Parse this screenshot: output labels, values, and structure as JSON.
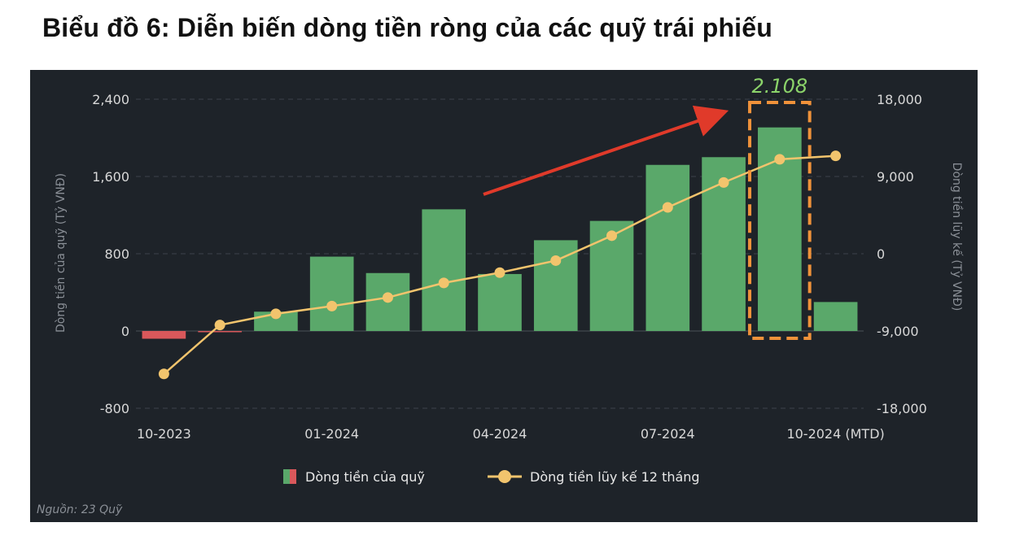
{
  "title": "Biểu đồ 6: Diễn biến dòng tiền ròng của các quỹ trái phiếu",
  "source": "Nguồn: 23 Quỹ",
  "chart_data": {
    "type": "bar",
    "categories": [
      "10-2023",
      "11-2023",
      "12-2023",
      "01-2024",
      "02-2024",
      "03-2024",
      "04-2024",
      "05-2024",
      "06-2024",
      "07-2024",
      "08-2024",
      "09-2024",
      "10-2024 (MTD)"
    ],
    "x_tick_labels": [
      {
        "index": 0,
        "label": "10-2023"
      },
      {
        "index": 3,
        "label": "01-2024"
      },
      {
        "index": 6,
        "label": "04-2024"
      },
      {
        "index": 9,
        "label": "07-2024"
      },
      {
        "index": 12,
        "label": "10-2024 (MTD)"
      }
    ],
    "series": [
      {
        "name": "Dòng tiền của quỹ",
        "type": "bar",
        "axis": "left",
        "values": [
          -80,
          -10,
          200,
          770,
          600,
          1260,
          590,
          940,
          1140,
          1720,
          1800,
          2108,
          300
        ]
      },
      {
        "name": "Dòng tiền lũy kế 12 tháng",
        "type": "line",
        "axis": "right",
        "values": [
          -14000,
          -8300,
          -7000,
          -6100,
          -5100,
          -3400,
          -2200,
          -800,
          2100,
          5400,
          8300,
          11000,
          11400
        ]
      }
    ],
    "y_left": {
      "label": "Dòng tiền của quỹ (Tỷ VNĐ)",
      "ylim": [
        -800,
        2400
      ],
      "ticks": [
        "-800",
        "0",
        "800",
        "1,600",
        "2,400"
      ],
      "tick_values": [
        -800,
        0,
        800,
        1600,
        2400
      ]
    },
    "y_right": {
      "label": "Dòng tiền lũy kế (Tỷ VNĐ)",
      "ylim": [
        -18000,
        18000
      ],
      "ticks": [
        "-18,000",
        "-9,000",
        "0",
        "9,000",
        "18,000"
      ],
      "tick_values": [
        -18000,
        -9000,
        0,
        9000,
        18000
      ]
    },
    "grid": true,
    "legend_position": "bottom",
    "annotation": {
      "text": "2.108",
      "index": 11
    },
    "colors": {
      "positive": "#5aa86a",
      "negative": "#d9585b",
      "line": "#f2c46d",
      "highlight": "#f0923a",
      "arrow": "#e03a2a",
      "annotation": "#8bd36a"
    }
  }
}
